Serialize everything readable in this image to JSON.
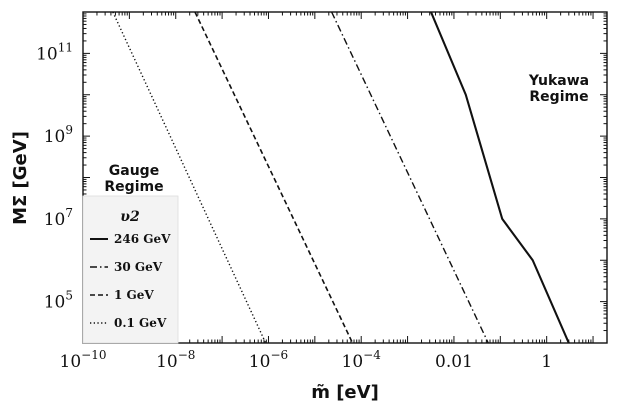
{
  "chart_data": {
    "type": "line",
    "xlabel": "m̃ [eV]",
    "ylabel": "MΣ [GeV]",
    "x_scale": "log",
    "y_scale": "log",
    "xlim": [
      1e-10,
      20
    ],
    "ylim": [
      10000,
      1000000000000.0
    ],
    "x_ticks": [
      {
        "value": 1e-10,
        "base": "10",
        "exp": "−10"
      },
      {
        "value": 1e-08,
        "base": "10",
        "exp": "−8"
      },
      {
        "value": 1e-06,
        "base": "10",
        "exp": "−6"
      },
      {
        "value": 0.0001,
        "base": "10",
        "exp": "−4"
      },
      {
        "value": 0.01,
        "base": "0.01",
        "exp": ""
      },
      {
        "value": 1,
        "base": "1",
        "exp": ""
      }
    ],
    "y_ticks": [
      {
        "value": 100000,
        "base": "10",
        "exp": "5"
      },
      {
        "value": 10000000,
        "base": "10",
        "exp": "7"
      },
      {
        "value": 1000000000,
        "base": "10",
        "exp": "9"
      },
      {
        "value": 100000000000,
        "base": "10",
        "exp": "11"
      }
    ],
    "annotations": {
      "left": [
        "Gauge",
        "Regime"
      ],
      "right": [
        "Yukawa",
        "Regime"
      ]
    },
    "legend": {
      "title": "υ2",
      "position": "lower-left"
    },
    "series": [
      {
        "name": "246 GeV",
        "style": "solid",
        "points": [
          [
            0.0032,
            1000000000000.0
          ],
          [
            0.018,
            10000000000.0
          ],
          [
            0.11,
            10000000.0
          ],
          [
            0.5,
            1000000.0
          ],
          [
            3.0,
            10000.0
          ]
        ]
      },
      {
        "name": "30 GeV",
        "style": "dashdot",
        "points": [
          [
            2.3e-05,
            1000000000000.0
          ],
          [
            0.055,
            10000.0
          ]
        ]
      },
      {
        "name": "1 GeV",
        "style": "dashed",
        "points": [
          [
            2.6e-08,
            1000000000000.0
          ],
          [
            6.5e-05,
            10000.0
          ]
        ]
      },
      {
        "name": "0.1 GeV",
        "style": "dotted",
        "points": [
          [
            4.4e-10,
            1000000000000.0
          ],
          [
            8.7e-07,
            10000.0
          ]
        ]
      }
    ]
  }
}
